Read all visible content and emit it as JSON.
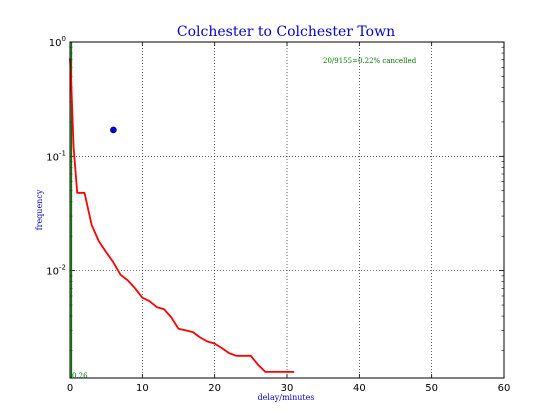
{
  "chart_data": {
    "type": "line",
    "title": "Colchester to Colchester Town",
    "xlabel": "delay/minutes",
    "ylabel": "frequency",
    "xlim": [
      0,
      60
    ],
    "ylim": [
      0.00115,
      1.0
    ],
    "yscale": "log",
    "grid": true,
    "x_ticks": [
      "0",
      "10",
      "20",
      "30",
      "40",
      "50",
      "60"
    ],
    "y_ticks": [
      {
        "base": "10",
        "exp": "0",
        "value": 1.0
      },
      {
        "base": "10",
        "exp": "-1",
        "value": 0.1
      },
      {
        "base": "10",
        "exp": "-2",
        "value": 0.01
      }
    ],
    "annotation_top": "20/9155=0.22% cancelled",
    "annotation_bottom": "0.26",
    "series": [
      {
        "color": "#ff0000",
        "x": [
          0,
          0.2,
          0.5,
          1,
          2,
          3,
          4,
          5,
          6,
          7,
          8,
          9,
          10,
          11,
          12,
          13,
          14,
          15,
          16,
          17,
          18,
          19,
          20,
          21,
          22,
          23,
          24,
          25,
          26,
          27,
          28,
          29,
          30,
          31
        ],
        "y": [
          0.72,
          0.4,
          0.12,
          0.048,
          0.048,
          0.025,
          0.018,
          0.0145,
          0.0118,
          0.0092,
          0.0082,
          0.007,
          0.0058,
          0.0054,
          0.0048,
          0.0046,
          0.0039,
          0.0031,
          0.003,
          0.0029,
          0.0026,
          0.0024,
          0.0023,
          0.0021,
          0.0019,
          0.0018,
          0.0018,
          0.0018,
          0.0015,
          0.0013,
          0.0013,
          0.0013,
          0.0013,
          0.0013
        ]
      }
    ],
    "point": {
      "x": 6,
      "y": 0.17,
      "color": "#0000ff"
    },
    "vline": {
      "x": 0.2,
      "color": "#007700"
    }
  }
}
